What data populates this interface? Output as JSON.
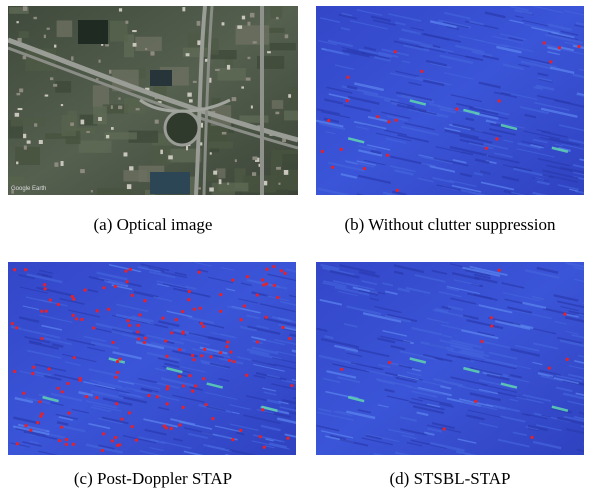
{
  "figure": {
    "subfigures": [
      {
        "label": "(a)",
        "caption": "Optical image",
        "watermark": "Google Earth"
      },
      {
        "label": "(b)",
        "caption": "Without clutter suppression"
      },
      {
        "label": "(c)",
        "caption": "Post-Doppler STAP"
      },
      {
        "label": "(d)",
        "caption": "STSBL-STAP"
      }
    ]
  }
}
